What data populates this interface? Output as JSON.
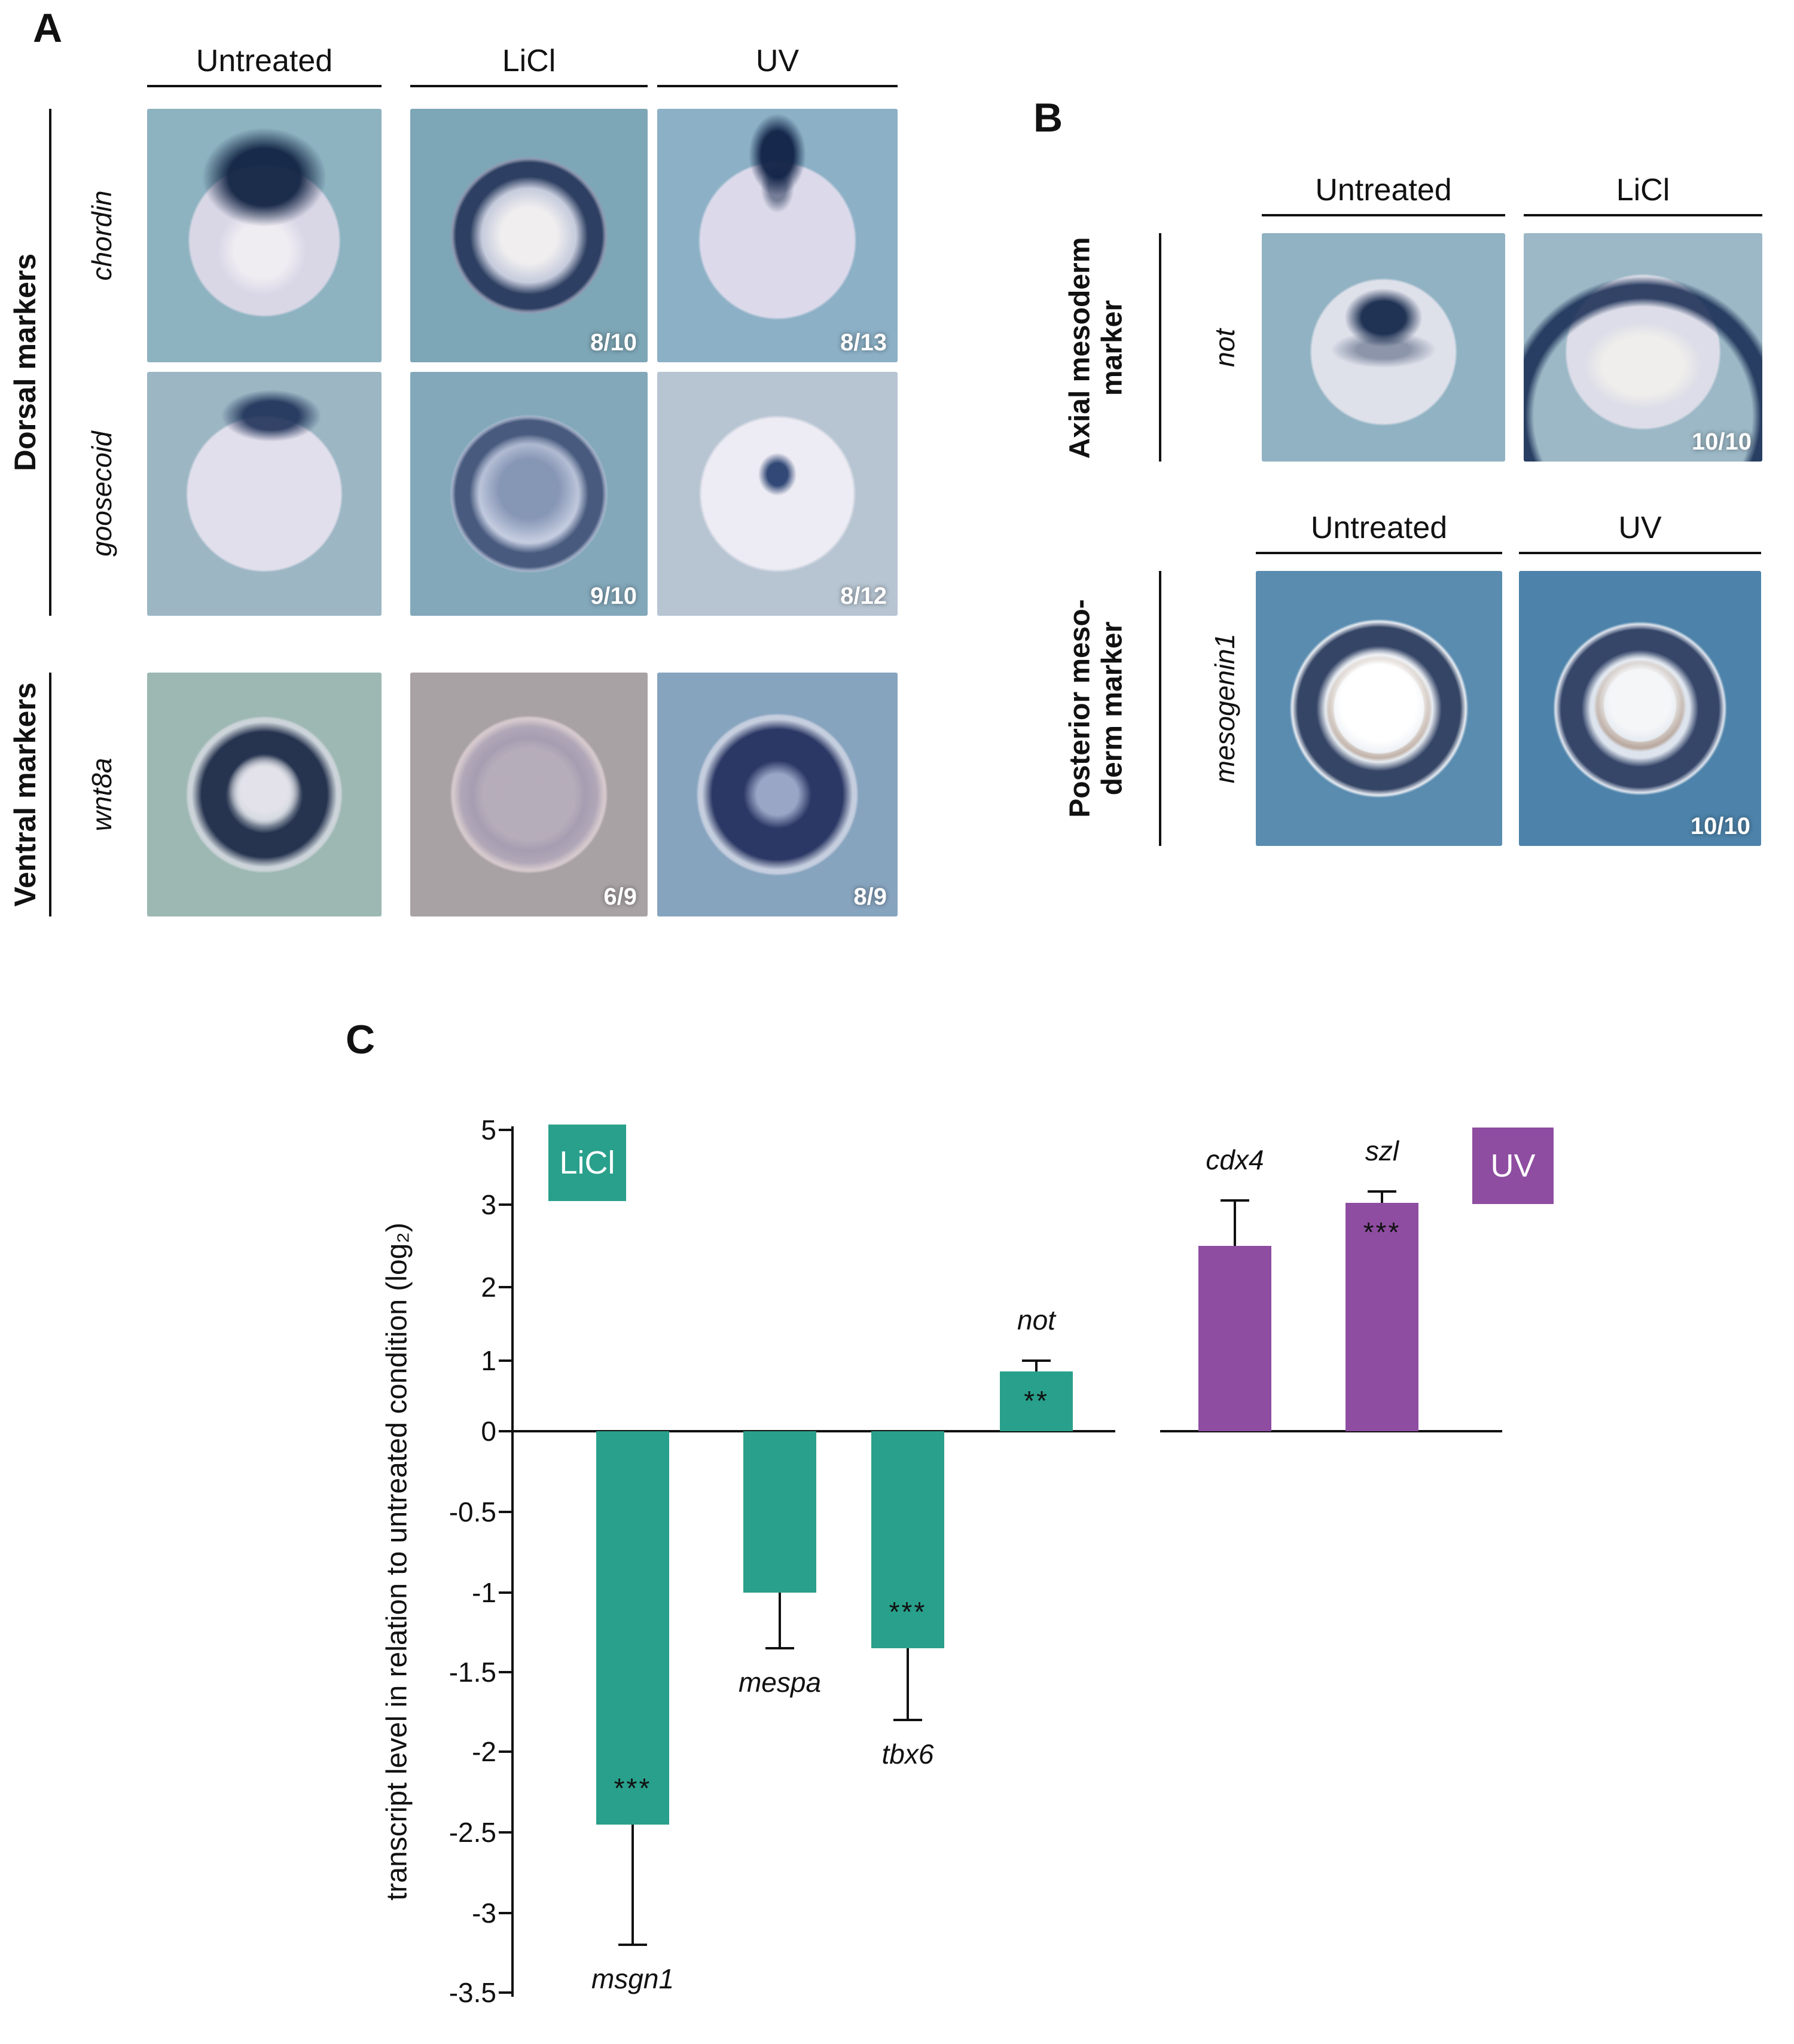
{
  "panelA": {
    "label": "A",
    "columns": [
      "Untreated",
      "LiCl",
      "UV"
    ],
    "groups": [
      {
        "label": "Dorsal markers",
        "rows": [
          {
            "gene": "chordin",
            "counts": [
              "",
              "8/10",
              "8/13"
            ]
          },
          {
            "gene": "goosecoid",
            "counts": [
              "",
              "9/10",
              "8/12"
            ]
          }
        ]
      },
      {
        "label": "Ventral markers",
        "rows": [
          {
            "gene": "wnt8a",
            "counts": [
              "",
              "6/9",
              "8/9"
            ]
          }
        ]
      }
    ]
  },
  "panelB": {
    "label": "B",
    "sections": [
      {
        "marker_line1": "Axial mesoderm",
        "marker_line2": "marker",
        "gene": "not",
        "columns": [
          "Untreated",
          "LiCl"
        ],
        "count": "10/10"
      },
      {
        "marker_line1": "Posterior meso-",
        "marker_line2": "derm marker",
        "gene": "mesogenin1",
        "columns": [
          "Untreated",
          "UV"
        ],
        "count": "10/10"
      }
    ]
  },
  "panelC": {
    "label": "C"
  },
  "chart_data": {
    "type": "bar",
    "title": "",
    "xlabel": "",
    "ylabel": "transcript level in relation to untreated condition (log₂)",
    "ylim": [
      -3.5,
      5
    ],
    "ytick_labels": [
      "5",
      "3",
      "2",
      "1",
      "0",
      "-0.5",
      "-1",
      "-1.5",
      "-2",
      "-2.5",
      "-3",
      "-3.5"
    ],
    "legend_position": "top",
    "grid": false,
    "groups": [
      {
        "name": "LiCl",
        "color": "#29a08b"
      },
      {
        "name": "UV",
        "color": "#8e4da1"
      }
    ],
    "bars": [
      {
        "gene": "msgn1",
        "group": "LiCl",
        "value": -2.45,
        "error": 0.75,
        "sig": "***"
      },
      {
        "gene": "mespa",
        "group": "LiCl",
        "value": -1.0,
        "error": 0.35,
        "sig": ""
      },
      {
        "gene": "tbx6",
        "group": "LiCl",
        "value": -1.35,
        "error": 0.45,
        "sig": "***"
      },
      {
        "gene": "not",
        "group": "LiCl",
        "value": 0.85,
        "error": 0.15,
        "sig": "**"
      },
      {
        "gene": "cdx4",
        "group": "UV",
        "value": 2.5,
        "error": 0.62,
        "sig": ""
      },
      {
        "gene": "szl",
        "group": "UV",
        "value": 3.05,
        "error": 0.3,
        "sig": "***"
      }
    ]
  }
}
